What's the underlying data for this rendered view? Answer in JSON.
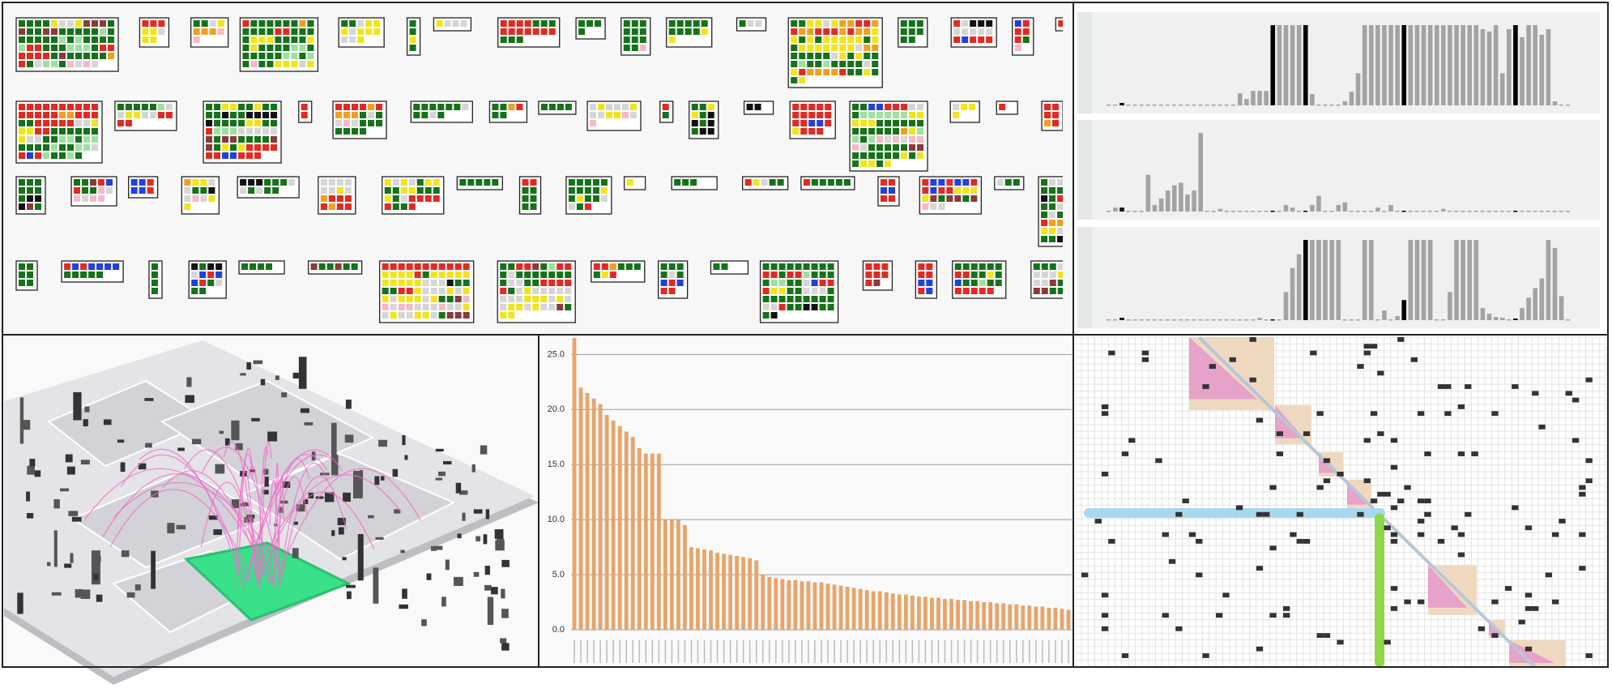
{
  "chart_data": [
    {
      "type": "column",
      "color": "#a3a3a3",
      "highlight_color": "#000000",
      "highlighted": [
        2,
        25,
        30,
        45,
        62
      ],
      "values": [
        0,
        0,
        0.3,
        0,
        0,
        0,
        0,
        0,
        0,
        0,
        0,
        0,
        0,
        0,
        0,
        0,
        0,
        0,
        0,
        0,
        1.5,
        0.8,
        1.8,
        1.8,
        1.8,
        10,
        10,
        10,
        10,
        10,
        10,
        1.4,
        0,
        0,
        0,
        0,
        0.5,
        1.7,
        4,
        10,
        10,
        10,
        10,
        10,
        10,
        10,
        10,
        10,
        10,
        10,
        10,
        10,
        10,
        10,
        10,
        10,
        10,
        9.5,
        9.2,
        10,
        4,
        9.5,
        10,
        8.5,
        10,
        10,
        8.8,
        9.5,
        0.5,
        0,
        0
      ]
    },
    {
      "type": "column",
      "color": "#a3a3a3",
      "highlight_color": "#000000",
      "highlighted": [
        2,
        25,
        30,
        45,
        62
      ],
      "values": [
        0,
        0.3,
        0.3,
        0,
        0,
        0,
        2.8,
        0.5,
        1,
        1.6,
        2,
        2.2,
        1.3,
        1.6,
        6,
        0,
        0,
        0.2,
        0,
        0,
        0,
        0,
        0,
        0,
        0,
        0,
        0,
        0.5,
        0.3,
        0,
        0,
        0.5,
        1.2,
        0,
        0,
        0.5,
        0.7,
        0,
        0,
        0,
        0,
        0.3,
        0,
        0.5,
        0,
        0,
        0,
        0,
        0,
        0,
        0,
        0.2,
        0,
        0,
        0,
        0,
        0,
        0,
        0,
        0,
        0,
        0,
        0,
        0,
        0,
        0,
        0,
        0,
        0,
        0,
        0
      ]
    },
    {
      "type": "column",
      "color": "#a3a3a3",
      "highlight_color": "#000000",
      "highlighted": [
        2,
        25,
        30,
        45,
        62
      ],
      "values": [
        0,
        0,
        0.3,
        0,
        0,
        0,
        0,
        0,
        0,
        0,
        0,
        0,
        0,
        0,
        0,
        0,
        0,
        0,
        0,
        0,
        0,
        0,
        0,
        0.3,
        0,
        0,
        0,
        3.5,
        6.5,
        8.2,
        10,
        10,
        10,
        10,
        10,
        10,
        0,
        0,
        0,
        10,
        10,
        0,
        1.2,
        0,
        0.5,
        2.5,
        10,
        10,
        10,
        10,
        0,
        0,
        3.5,
        10,
        10,
        10,
        10,
        1.5,
        0.8,
        0.4,
        0.3,
        0,
        0.2,
        1.5,
        2.8,
        4,
        5.2,
        10,
        9,
        3,
        0
      ]
    },
    {
      "type": "bar",
      "color": "#e8a46a",
      "ylim": [
        0,
        26.5
      ],
      "yticks": [
        {
          "value": 0,
          "label": "0.0"
        },
        {
          "value": 5,
          "label": "5.0"
        },
        {
          "value": 10,
          "label": "10.0"
        },
        {
          "value": 15,
          "label": "15.0"
        },
        {
          "value": 20,
          "label": "20.0"
        },
        {
          "value": 25,
          "label": "25.0"
        }
      ],
      "grid": true,
      "values": [
        26.5,
        22,
        21.5,
        21,
        20.5,
        19.5,
        19,
        18.5,
        18,
        17.5,
        16.5,
        16,
        16,
        16,
        10,
        10,
        10,
        9.5,
        7.5,
        7.4,
        7.3,
        7.2,
        7,
        6.9,
        6.8,
        6.7,
        6.6,
        6.5,
        6.3,
        5,
        4.8,
        4.7,
        4.6,
        4.5,
        4.5,
        4.4,
        4.4,
        4.3,
        4.3,
        4.2,
        4.1,
        4,
        3.9,
        3.8,
        3.7,
        3.6,
        3.5,
        3.5,
        3.4,
        3.3,
        3.2,
        3.2,
        3.1,
        3,
        3,
        2.9,
        2.9,
        2.8,
        2.8,
        2.7,
        2.7,
        2.6,
        2.6,
        2.5,
        2.5,
        2.4,
        2.4,
        2.3,
        2.3,
        2.2,
        2.2,
        2.1,
        2.1,
        2,
        2,
        1.9,
        1.8
      ]
    }
  ]
}
